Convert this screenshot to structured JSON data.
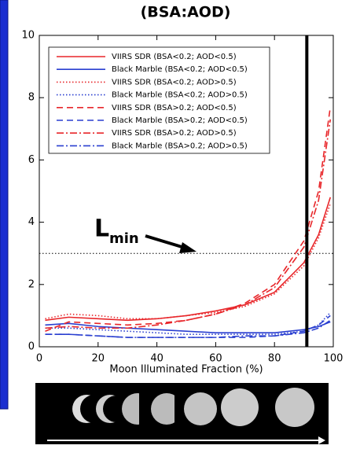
{
  "chart_data": {
    "type": "line",
    "title": "(BSA:AOD)",
    "x_label": "Moon Illuminated Fraction (%)",
    "x": [
      2,
      10,
      20,
      30,
      40,
      50,
      60,
      70,
      80,
      90,
      95,
      99
    ],
    "xlim": [
      0,
      100
    ],
    "xticks": [
      0,
      20,
      40,
      60,
      80,
      100
    ],
    "ylim": [
      0,
      10
    ],
    "yticks": [
      0,
      2,
      4,
      6,
      8,
      10
    ],
    "legend": "upper left",
    "hline": 3,
    "vline": 91,
    "annotation": {
      "text": "L",
      "subscript": "min"
    },
    "series": [
      {
        "name": "VIIRS SDR (BSA<0.2; AOD<0.5)",
        "color": "#e8262a",
        "style": "solid",
        "values": [
          0.85,
          0.95,
          0.9,
          0.85,
          0.9,
          1.0,
          1.15,
          1.35,
          1.75,
          2.7,
          3.6,
          4.8
        ]
      },
      {
        "name": "Black Marble (BSA<0.2; AOD<0.5)",
        "color": "#2a3fd0",
        "style": "solid",
        "values": [
          0.7,
          0.75,
          0.65,
          0.6,
          0.55,
          0.5,
          0.45,
          0.45,
          0.45,
          0.55,
          0.65,
          0.8
        ]
      },
      {
        "name": "VIIRS SDR (BSA<0.2; AOD>0.5)",
        "color": "#e8262a",
        "style": "dotted",
        "values": [
          0.9,
          1.05,
          1.0,
          0.9,
          0.9,
          1.0,
          1.1,
          1.3,
          1.7,
          2.6,
          3.5,
          4.6
        ]
      },
      {
        "name": "Black Marble (BSA<0.2; AOD>0.5)",
        "color": "#2a3fd0",
        "style": "dotted",
        "values": [
          0.6,
          0.6,
          0.55,
          0.5,
          0.45,
          0.4,
          0.4,
          0.4,
          0.4,
          0.5,
          0.7,
          1.1
        ]
      },
      {
        "name": "VIIRS SDR (BSA>0.2; AOD<0.5)",
        "color": "#e8262a",
        "style": "dashed",
        "values": [
          0.5,
          0.8,
          0.75,
          0.7,
          0.75,
          0.85,
          1.05,
          1.4,
          2.0,
          3.4,
          5.0,
          7.7
        ]
      },
      {
        "name": "Black Marble (BSA>0.2; AOD<0.5)",
        "color": "#2a3fd0",
        "style": "dashed",
        "values": [
          0.4,
          0.4,
          0.35,
          0.3,
          0.3,
          0.3,
          0.3,
          0.3,
          0.35,
          0.5,
          0.7,
          1.0
        ]
      },
      {
        "name": "VIIRS SDR (BSA>0.2; AOD>0.5)",
        "color": "#e8262a",
        "style": "dashdot",
        "values": [
          0.6,
          0.65,
          0.6,
          0.6,
          0.7,
          0.85,
          1.05,
          1.35,
          1.9,
          3.2,
          4.7,
          7.3
        ]
      },
      {
        "name": "Black Marble (BSA>0.2; AOD>0.5)",
        "color": "#2a3fd0",
        "style": "dashdot",
        "values": [
          0.4,
          0.4,
          0.35,
          0.3,
          0.3,
          0.3,
          0.3,
          0.35,
          0.35,
          0.45,
          0.6,
          0.85
        ]
      }
    ]
  }
}
